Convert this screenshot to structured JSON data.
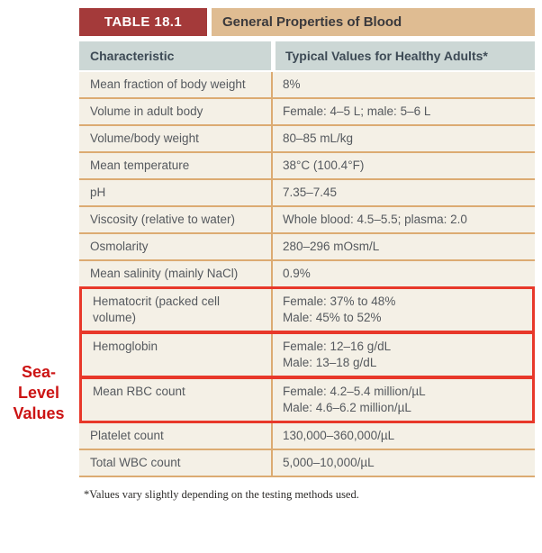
{
  "annotation": {
    "text": "Sea-\nLevel\nValues",
    "color": "#cc1414"
  },
  "table": {
    "tag": "TABLE 18.1",
    "title": "General Properties of Blood",
    "columns": {
      "characteristic": "Characteristic",
      "values": "Typical Values for Healthy Adults*"
    },
    "rows": [
      {
        "characteristic": "Mean fraction of body weight",
        "values": [
          "8%"
        ],
        "highlighted": false
      },
      {
        "characteristic": "Volume in adult body",
        "values": [
          "Female: 4–5 L; male: 5–6 L"
        ],
        "highlighted": false
      },
      {
        "characteristic": "Volume/body weight",
        "values": [
          "80–85 mL/kg"
        ],
        "highlighted": false
      },
      {
        "characteristic": "Mean temperature",
        "values": [
          "38°C (100.4°F)"
        ],
        "highlighted": false
      },
      {
        "characteristic": "pH",
        "values": [
          "7.35–7.45"
        ],
        "highlighted": false
      },
      {
        "characteristic": "Viscosity (relative to water)",
        "values": [
          "Whole blood: 4.5–5.5; plasma: 2.0"
        ],
        "highlighted": false
      },
      {
        "characteristic": "Osmolarity",
        "values": [
          "280–296 mOsm/L"
        ],
        "highlighted": false
      },
      {
        "characteristic": "Mean salinity (mainly NaCl)",
        "values": [
          "0.9%"
        ],
        "highlighted": false
      },
      {
        "characteristic": "Hematocrit (packed cell volume)",
        "values": [
          "Female: 37% to 48%",
          "Male: 45% to 52%"
        ],
        "highlighted": true
      },
      {
        "characteristic": "Hemoglobin",
        "values": [
          "Female: 12–16 g/dL",
          "Male: 13–18 g/dL"
        ],
        "highlighted": true
      },
      {
        "characteristic": "Mean RBC count",
        "values": [
          "Female: 4.2–5.4 million/µL",
          "Male: 4.6–6.2 million/µL"
        ],
        "highlighted": true
      },
      {
        "characteristic": "Platelet count",
        "values": [
          "130,000–360,000/µL"
        ],
        "highlighted": false
      },
      {
        "characteristic": "Total WBC count",
        "values": [
          "5,000–10,000/µL"
        ],
        "highlighted": false
      }
    ]
  },
  "footnote": "*Values vary slightly depending on the testing methods used.",
  "colors": {
    "header_red": "#a43a3a",
    "header_tan": "#dfbc92",
    "column_header_bg": "#ccd7d5",
    "row_bg": "#f4f0e6",
    "divider_orange": "#dcab72",
    "highlight_box_red": "#e8382a",
    "annotation_red": "#cc1414",
    "body_text": "#55595e"
  }
}
